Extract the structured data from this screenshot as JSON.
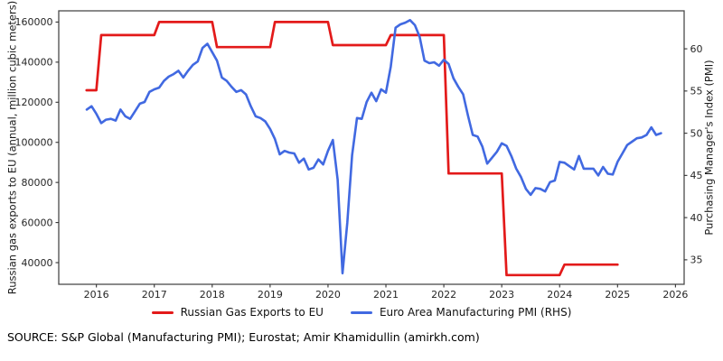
{
  "source_note": "SOURCE: S&P Global (Manufacturing PMI); Eurostat; Amir Khamidullin (amirkh.com)",
  "chart_data": {
    "type": "line",
    "title": "",
    "grid": false,
    "background": "#ffffff",
    "legend_position": "bottom-center",
    "x_axis": {
      "ticks": [
        2016,
        2017,
        2018,
        2019,
        2020,
        2021,
        2022,
        2023,
        2024,
        2025,
        2026
      ],
      "range": [
        2015.35,
        2026.15
      ]
    },
    "left_axis": {
      "label": "Russian gas exports to EU (annual, million cubic meters)",
      "ticks": [
        40000,
        60000,
        80000,
        100000,
        120000,
        140000,
        160000
      ],
      "range": [
        29200,
        165600
      ]
    },
    "right_axis": {
      "label": "Purchasing Manager's Index (PMI)",
      "ticks": [
        35,
        40,
        45,
        50,
        55,
        60
      ],
      "range": [
        32.1,
        64.5
      ]
    },
    "series": [
      {
        "name": "Russian Gas Exports to EU",
        "axis": "left",
        "color": "#e31a1a",
        "type": "annual-step",
        "years": [
          2015.83,
          2016,
          2017,
          2018,
          2019,
          2020,
          2021,
          2022,
          2023,
          2024
        ],
        "values": [
          126000,
          153500,
          160000,
          147500,
          160000,
          148500,
          153500,
          84500,
          33800,
          39000
        ],
        "extend_to": 2025
      },
      {
        "name": "Euro Area Manufacturing PMI (RHS)",
        "axis": "right",
        "color": "#4169e1",
        "type": "monthly-line",
        "start_year": 2015,
        "start_month": 11,
        "values": [
          52.8,
          53.2,
          52.3,
          51.2,
          51.6,
          51.7,
          51.5,
          52.8,
          52.0,
          51.7,
          52.6,
          53.5,
          53.7,
          54.9,
          55.2,
          55.4,
          56.2,
          56.7,
          57.0,
          57.4,
          56.6,
          57.4,
          58.1,
          58.5,
          60.1,
          60.6,
          59.6,
          58.6,
          56.6,
          56.2,
          55.5,
          54.9,
          55.1,
          54.6,
          53.2,
          52.0,
          51.8,
          51.4,
          50.5,
          49.3,
          47.5,
          47.9,
          47.7,
          47.6,
          46.5,
          47.0,
          45.7,
          45.9,
          46.9,
          46.3,
          47.9,
          49.2,
          44.5,
          33.4,
          39.4,
          47.4,
          51.8,
          51.7,
          53.7,
          54.8,
          53.8,
          55.2,
          54.8,
          57.9,
          62.5,
          62.9,
          63.1,
          63.4,
          62.8,
          61.4,
          58.6,
          58.3,
          58.4,
          58.0,
          58.7,
          58.2,
          56.5,
          55.5,
          54.6,
          52.1,
          49.8,
          49.6,
          48.4,
          46.4,
          47.1,
          47.8,
          48.8,
          48.5,
          47.3,
          45.8,
          44.8,
          43.4,
          42.7,
          43.5,
          43.4,
          43.1,
          44.2,
          44.4,
          46.6,
          46.5,
          46.1,
          45.7,
          47.3,
          45.8,
          45.8,
          45.8,
          45.0,
          46.0,
          45.2,
          45.1,
          46.6,
          47.6,
          48.6,
          49.0,
          49.4,
          49.5,
          49.8,
          50.7,
          49.8,
          50.0
        ]
      }
    ]
  }
}
